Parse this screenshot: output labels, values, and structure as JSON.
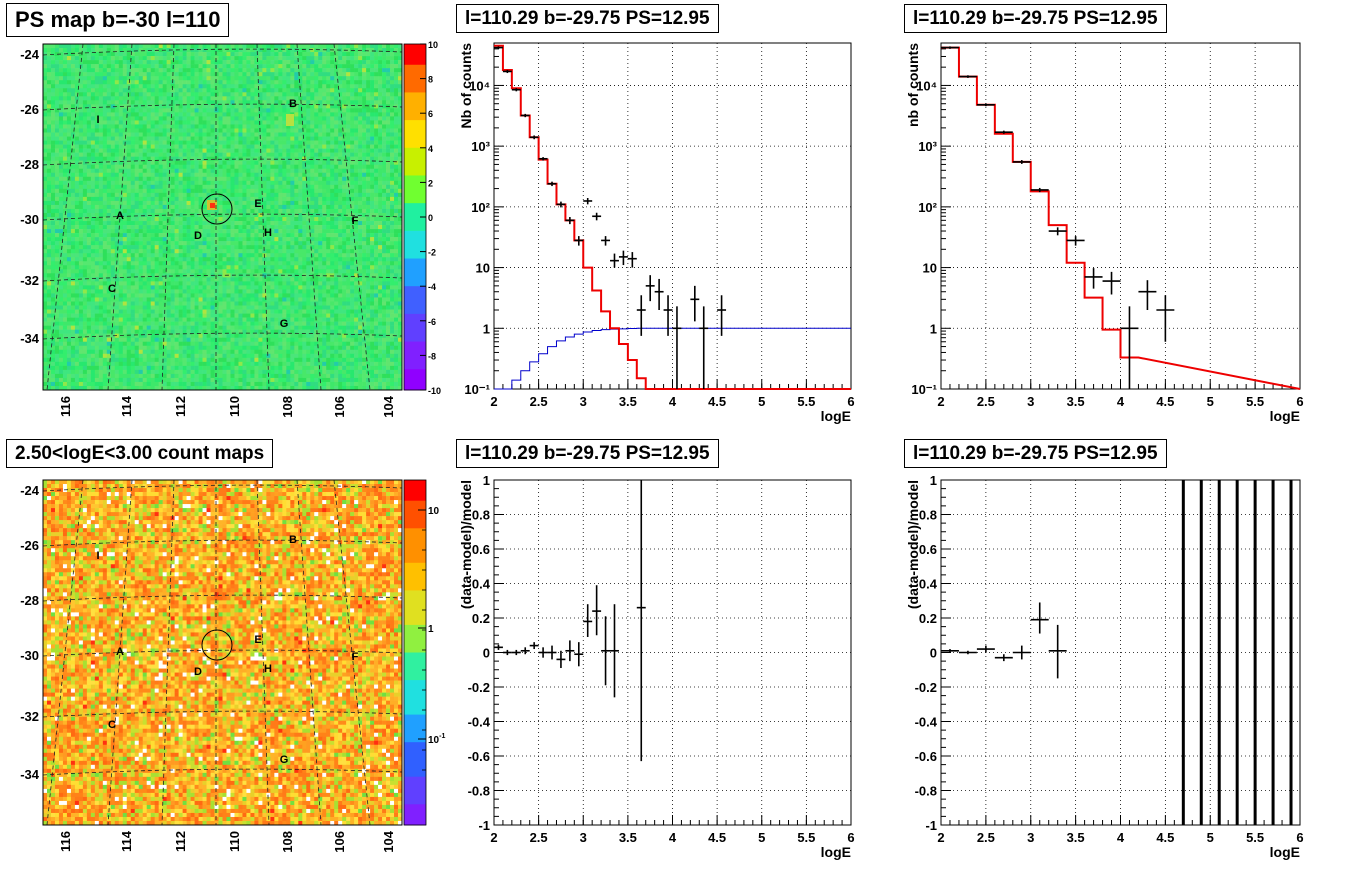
{
  "maps": [
    {
      "id": "ps-map",
      "title": "PS map b=-30 l=110",
      "yticks": [
        "-24",
        "-26",
        "-28",
        "-30",
        "-32",
        "-34"
      ],
      "xticks": [
        "116",
        "114",
        "112",
        "110",
        "108",
        "106",
        "104"
      ],
      "colorbar_ticks": [
        "10",
        "8",
        "6",
        "4",
        "2",
        "0",
        "-2",
        "-4",
        "-6",
        "-8",
        "-10"
      ],
      "labels": [
        "A",
        "B",
        "C",
        "D",
        "E",
        "F",
        "G",
        "H",
        "I"
      ]
    },
    {
      "id": "count-map",
      "title": "2.50<logE<3.00 count maps",
      "yticks": [
        "-24",
        "-26",
        "-28",
        "-30",
        "-32",
        "-34"
      ],
      "xticks": [
        "116",
        "114",
        "112",
        "110",
        "108",
        "106",
        "104"
      ],
      "colorbar_ticks": [
        "10",
        "1"
      ],
      "colorbar_ticks_exp": [
        {
          "base": "10",
          "exp": "-1"
        }
      ],
      "labels": [
        "A",
        "B",
        "C",
        "D",
        "E",
        "F",
        "G",
        "H",
        "I"
      ]
    }
  ],
  "chart_data": [
    {
      "type": "line",
      "title": "l=110.29 b=-29.75 PS=12.95",
      "ylabel": "Nb of counts",
      "xlabel": "logE",
      "log_y": true,
      "xlim": [
        2,
        6
      ],
      "ylim": [
        0.1,
        50000
      ],
      "xticks": [
        "2",
        "2.5",
        "3",
        "3.5",
        "4",
        "4.5",
        "5",
        "5.5",
        "6"
      ],
      "yticks": [
        "10⁻¹",
        "1",
        "10",
        "10²",
        "10³",
        "10⁴"
      ],
      "model_red": {
        "edges": [
          2,
          2.1,
          2.2,
          2.3,
          2.4,
          2.5,
          2.6,
          2.7,
          2.8,
          2.9,
          3.0,
          3.1,
          3.2,
          3.3,
          3.4,
          3.5,
          3.6,
          3.7,
          3.8,
          3.9,
          4.0,
          4.1,
          4.2
        ],
        "values": [
          45000,
          18000,
          9000,
          3200,
          1400,
          600,
          240,
          110,
          60,
          28,
          10,
          4.2,
          1.9,
          1.0,
          0.55,
          0.3,
          0.15,
          0.1,
          0.1,
          0.1,
          0.1,
          0.1
        ],
        "after": 0.1
      },
      "curve_blue": {
        "edges": [
          2.0,
          2.1,
          2.2,
          2.3,
          2.4,
          2.5,
          2.6,
          2.7,
          2.8,
          2.9,
          3.0,
          3.1,
          3.2,
          3.3,
          3.4,
          3.5,
          3.6,
          3.7,
          3.8,
          3.9,
          4.0
        ],
        "values": [
          0.1,
          0.1,
          0.14,
          0.2,
          0.28,
          0.38,
          0.5,
          0.62,
          0.72,
          0.8,
          0.87,
          0.92,
          0.95,
          0.97,
          0.98,
          0.99,
          1.0,
          1.0,
          1.0,
          1.0
        ],
        "after": 1.0
      },
      "points": [
        {
          "x": 2.05,
          "y": 42000,
          "ylo": 40000,
          "yhi": 44000,
          "xerr": 0.05
        },
        {
          "x": 2.15,
          "y": 17000,
          "ylo": 16000,
          "yhi": 18000,
          "xerr": 0.05
        },
        {
          "x": 2.25,
          "y": 8500,
          "ylo": 8000,
          "yhi": 9000,
          "xerr": 0.05
        },
        {
          "x": 2.35,
          "y": 3200,
          "ylo": 3000,
          "yhi": 3400,
          "xerr": 0.05
        },
        {
          "x": 2.45,
          "y": 1400,
          "ylo": 1300,
          "yhi": 1500,
          "xerr": 0.05
        },
        {
          "x": 2.55,
          "y": 620,
          "ylo": 580,
          "yhi": 660,
          "xerr": 0.05
        },
        {
          "x": 2.65,
          "y": 240,
          "ylo": 220,
          "yhi": 260,
          "xerr": 0.05
        },
        {
          "x": 2.75,
          "y": 110,
          "ylo": 98,
          "yhi": 122,
          "xerr": 0.05
        },
        {
          "x": 2.85,
          "y": 60,
          "ylo": 52,
          "yhi": 68,
          "xerr": 0.05
        },
        {
          "x": 2.95,
          "y": 28,
          "ylo": 23,
          "yhi": 33,
          "xerr": 0.05
        },
        {
          "x": 3.05,
          "y": 125,
          "ylo": 110,
          "yhi": 140,
          "xerr": 0.05
        },
        {
          "x": 3.15,
          "y": 70,
          "ylo": 60,
          "yhi": 80,
          "xerr": 0.05
        },
        {
          "x": 3.25,
          "y": 28,
          "ylo": 23,
          "yhi": 33,
          "xerr": 0.05
        },
        {
          "x": 3.35,
          "y": 13,
          "ylo": 10,
          "yhi": 17,
          "xerr": 0.05
        },
        {
          "x": 3.45,
          "y": 15,
          "ylo": 11,
          "yhi": 19,
          "xerr": 0.05
        },
        {
          "x": 3.55,
          "y": 14,
          "ylo": 10,
          "yhi": 18,
          "xerr": 0.05
        },
        {
          "x": 3.65,
          "y": 2.0,
          "ylo": 0.75,
          "yhi": 3.5,
          "xerr": 0.05
        },
        {
          "x": 3.75,
          "y": 5.0,
          "ylo": 2.8,
          "yhi": 7.5,
          "xerr": 0.05
        },
        {
          "x": 3.85,
          "y": 4.0,
          "ylo": 2.0,
          "yhi": 6.5,
          "xerr": 0.05
        },
        {
          "x": 3.95,
          "y": 2.0,
          "ylo": 0.75,
          "yhi": 3.5,
          "xerr": 0.05
        },
        {
          "x": 4.05,
          "y": 1.0,
          "ylo": 0.1,
          "yhi": 2.3,
          "xerr": 0.05
        },
        {
          "x": 4.25,
          "y": 3.0,
          "ylo": 1.3,
          "yhi": 5.0,
          "xerr": 0.05
        },
        {
          "x": 4.35,
          "y": 1.0,
          "ylo": 0.1,
          "yhi": 2.3,
          "xerr": 0.05
        },
        {
          "x": 4.55,
          "y": 2.0,
          "ylo": 0.75,
          "yhi": 3.5,
          "xerr": 0.05
        }
      ]
    },
    {
      "type": "line",
      "title": "l=110.29 b=-29.75 PS=12.95",
      "ylabel": "nb of counts",
      "xlabel": "logE",
      "log_y": true,
      "xlim": [
        2,
        6
      ],
      "ylim": [
        0.1,
        50000
      ],
      "xticks": [
        "2",
        "2.5",
        "3",
        "3.5",
        "4",
        "4.5",
        "5",
        "5.5",
        "6"
      ],
      "yticks": [
        "10⁻¹",
        "1",
        "10",
        "10²",
        "10³",
        "10⁴"
      ],
      "model_red": {
        "edges": [
          2.0,
          2.2,
          2.4,
          2.6,
          2.8,
          3.0,
          3.2,
          3.4,
          3.6,
          3.8,
          4.0,
          4.2
        ],
        "values": [
          42000,
          14000,
          4800,
          1600,
          550,
          180,
          50,
          12,
          3.2,
          0.95,
          0.33
        ],
        "after": 0.1
      },
      "points": [
        {
          "x": 2.1,
          "y": 42000,
          "ylo": 40000,
          "yhi": 44000,
          "xerr": 0.1
        },
        {
          "x": 2.3,
          "y": 14000,
          "ylo": 13300,
          "yhi": 14700,
          "xerr": 0.1
        },
        {
          "x": 2.5,
          "y": 4800,
          "ylo": 4550,
          "yhi": 5050,
          "xerr": 0.1
        },
        {
          "x": 2.7,
          "y": 1700,
          "ylo": 1600,
          "yhi": 1800,
          "xerr": 0.1
        },
        {
          "x": 2.9,
          "y": 550,
          "ylo": 510,
          "yhi": 590,
          "xerr": 0.1
        },
        {
          "x": 3.1,
          "y": 190,
          "ylo": 175,
          "yhi": 205,
          "xerr": 0.1
        },
        {
          "x": 3.3,
          "y": 40,
          "ylo": 34,
          "yhi": 46,
          "xerr": 0.1
        },
        {
          "x": 3.5,
          "y": 28,
          "ylo": 23,
          "yhi": 33,
          "xerr": 0.1
        },
        {
          "x": 3.7,
          "y": 7.0,
          "ylo": 4.5,
          "yhi": 9.8,
          "xerr": 0.1
        },
        {
          "x": 3.9,
          "y": 6.0,
          "ylo": 3.6,
          "yhi": 8.5,
          "xerr": 0.1
        },
        {
          "x": 4.1,
          "y": 1.0,
          "ylo": 0.1,
          "yhi": 2.3,
          "xerr": 0.1
        },
        {
          "x": 4.3,
          "y": 4.0,
          "ylo": 2.0,
          "yhi": 6.2,
          "xerr": 0.1
        },
        {
          "x": 4.5,
          "y": 2.0,
          "ylo": 0.6,
          "yhi": 3.5,
          "xerr": 0.1
        }
      ]
    },
    {
      "type": "scatter",
      "title": "l=110.29 b=-29.75 PS=12.95",
      "ylabel": "(data-model)/model",
      "xlabel": "logE",
      "xlim": [
        2,
        6
      ],
      "ylim": [
        -1,
        1
      ],
      "xticks": [
        "2",
        "2.5",
        "3",
        "3.5",
        "4",
        "4.5",
        "5",
        "5.5",
        "6"
      ],
      "yticks": [
        "-1",
        "-0.8",
        "-0.6",
        "-0.4",
        "-0.2",
        "0",
        "0.2",
        "0.4",
        "0.6",
        "0.8",
        "1"
      ],
      "points": [
        {
          "x": 2.05,
          "y": 0.03,
          "ylo": 0.015,
          "yhi": 0.045,
          "xerr": 0.05
        },
        {
          "x": 2.15,
          "y": 0.0,
          "ylo": -0.015,
          "yhi": 0.015,
          "xerr": 0.05
        },
        {
          "x": 2.25,
          "y": 0.0,
          "ylo": -0.015,
          "yhi": 0.015,
          "xerr": 0.05
        },
        {
          "x": 2.35,
          "y": 0.01,
          "ylo": -0.01,
          "yhi": 0.03,
          "xerr": 0.05
        },
        {
          "x": 2.45,
          "y": 0.04,
          "ylo": 0.02,
          "yhi": 0.06,
          "xerr": 0.05
        },
        {
          "x": 2.55,
          "y": 0.0,
          "ylo": -0.03,
          "yhi": 0.03,
          "xerr": 0.05
        },
        {
          "x": 2.65,
          "y": 0.0,
          "ylo": -0.04,
          "yhi": 0.04,
          "xerr": 0.05
        },
        {
          "x": 2.75,
          "y": -0.04,
          "ylo": -0.09,
          "yhi": 0.01,
          "xerr": 0.05
        },
        {
          "x": 2.85,
          "y": 0.01,
          "ylo": -0.05,
          "yhi": 0.07,
          "xerr": 0.05
        },
        {
          "x": 2.95,
          "y": -0.01,
          "ylo": -0.08,
          "yhi": 0.06,
          "xerr": 0.05
        },
        {
          "x": 3.05,
          "y": 0.18,
          "ylo": 0.09,
          "yhi": 0.28,
          "xerr": 0.05
        },
        {
          "x": 3.15,
          "y": 0.24,
          "ylo": 0.1,
          "yhi": 0.39,
          "xerr": 0.05
        },
        {
          "x": 3.25,
          "y": 0.01,
          "ylo": -0.19,
          "yhi": 0.21,
          "xerr": 0.05
        },
        {
          "x": 3.35,
          "y": 0.01,
          "ylo": -0.26,
          "yhi": 0.28,
          "xerr": 0.05
        },
        {
          "x": 3.65,
          "y": 0.26,
          "ylo": -0.63,
          "yhi": 1.0,
          "xerr": 0.05
        }
      ]
    },
    {
      "type": "scatter",
      "title": "l=110.29 b=-29.75 PS=12.95",
      "ylabel": "(data-model)/model",
      "xlabel": "logE",
      "xlim": [
        2,
        6
      ],
      "ylim": [
        -1,
        1
      ],
      "xticks": [
        "2",
        "2.5",
        "3",
        "3.5",
        "4",
        "4.5",
        "5",
        "5.5",
        "6"
      ],
      "yticks": [
        "-1",
        "-0.8",
        "-0.6",
        "-0.4",
        "-0.2",
        "0",
        "0.2",
        "0.4",
        "0.6",
        "0.8",
        "1"
      ],
      "points": [
        {
          "x": 2.1,
          "y": 0.01,
          "ylo": 0.0,
          "yhi": 0.02,
          "xerr": 0.1
        },
        {
          "x": 2.3,
          "y": 0.0,
          "ylo": -0.01,
          "yhi": 0.01,
          "xerr": 0.1
        },
        {
          "x": 2.5,
          "y": 0.02,
          "ylo": 0.0,
          "yhi": 0.04,
          "xerr": 0.1
        },
        {
          "x": 2.7,
          "y": -0.03,
          "ylo": -0.05,
          "yhi": -0.01,
          "xerr": 0.1
        },
        {
          "x": 2.9,
          "y": 0.0,
          "ylo": -0.04,
          "yhi": 0.04,
          "xerr": 0.1
        },
        {
          "x": 3.1,
          "y": 0.19,
          "ylo": 0.11,
          "yhi": 0.29,
          "xerr": 0.1
        },
        {
          "x": 3.3,
          "y": 0.01,
          "ylo": -0.15,
          "yhi": 0.16,
          "xerr": 0.1
        },
        {
          "x": 4.7,
          "y": 0,
          "ylo": -1,
          "yhi": 1,
          "xerr": 0
        },
        {
          "x": 4.9,
          "y": 0,
          "ylo": -1,
          "yhi": 1,
          "xerr": 0
        },
        {
          "x": 5.1,
          "y": 0,
          "ylo": -1,
          "yhi": 1,
          "xerr": 0
        },
        {
          "x": 5.3,
          "y": 0,
          "ylo": -1,
          "yhi": 1,
          "xerr": 0
        },
        {
          "x": 5.5,
          "y": 0,
          "ylo": -1,
          "yhi": 1,
          "xerr": 0
        },
        {
          "x": 5.7,
          "y": 0,
          "ylo": -1,
          "yhi": 1,
          "xerr": 0
        },
        {
          "x": 5.9,
          "y": 0,
          "ylo": -1,
          "yhi": 1,
          "xerr": 0
        }
      ]
    }
  ]
}
